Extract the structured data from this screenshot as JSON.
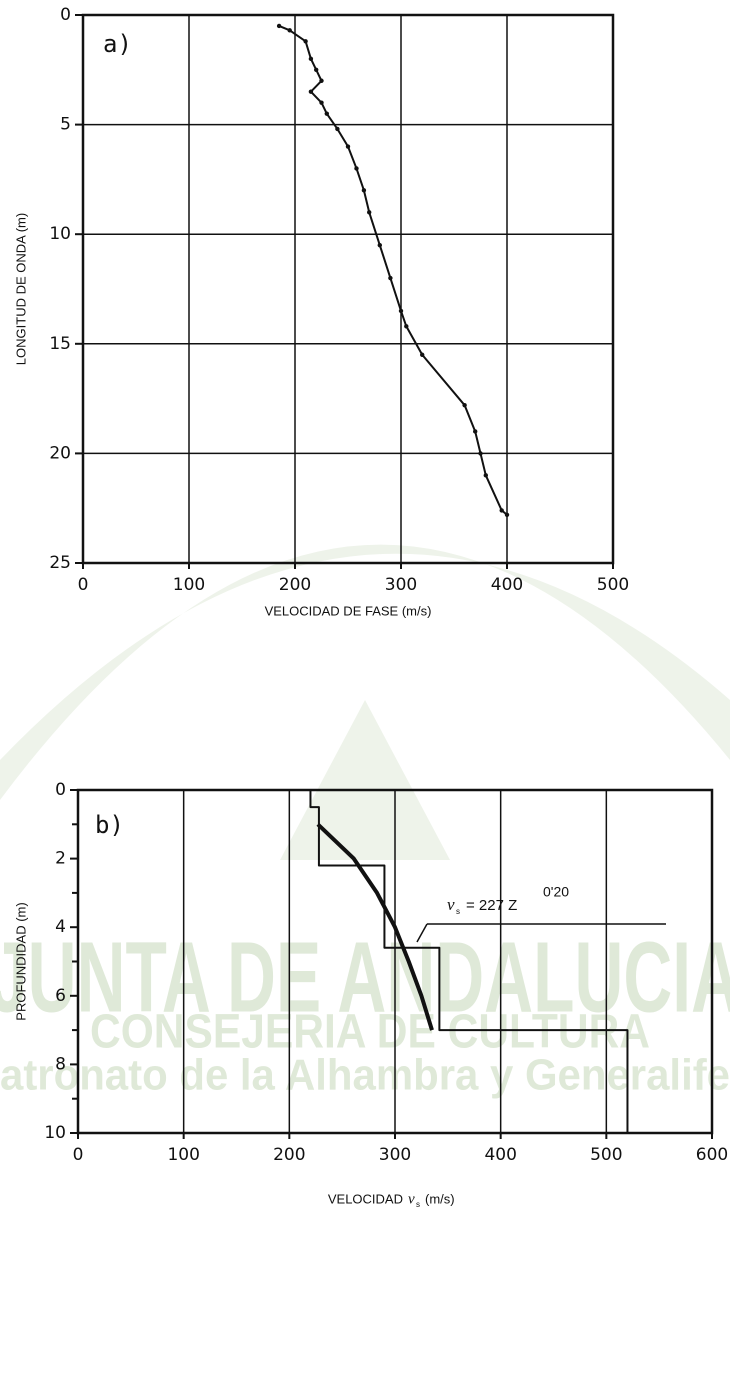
{
  "chart_data": [
    {
      "type": "line",
      "panel_label": "a)",
      "ylabel": "LONGITUD DE ONDA (m)",
      "xlabel": "VELOCIDAD DE FASE (m/s)",
      "xlim": [
        0,
        500
      ],
      "xticks": [
        0,
        100,
        200,
        300,
        400,
        500
      ],
      "ylim": [
        0,
        25
      ],
      "yticks": [
        0,
        5,
        10,
        15,
        20,
        25
      ],
      "y_inverted": true,
      "grid": "both",
      "markers": true,
      "series": [
        {
          "color": "#111111",
          "width": 2,
          "x": [
            185,
            195,
            210,
            215,
            220,
            225,
            215,
            225,
            230,
            240,
            250,
            258,
            265,
            270,
            280,
            290,
            300,
            305,
            320,
            360,
            370,
            375,
            380,
            395,
            400
          ],
          "values": [
            0.5,
            0.7,
            1.2,
            2,
            2.5,
            3,
            3.5,
            4,
            4.5,
            5.2,
            6,
            7,
            8,
            9,
            10.5,
            12,
            13.5,
            14.2,
            15.5,
            17.8,
            19,
            20,
            21,
            22.6,
            22.8
          ]
        }
      ]
    },
    {
      "type": "line",
      "panel_label": "b)",
      "ylabel": "PROFUNDIDAD (m)",
      "xlabel": {
        "text": "VELOCIDAD",
        "symbol": "v",
        "subscript": "s",
        "unit": "(m/s)"
      },
      "xlim": [
        0,
        600
      ],
      "xticks": [
        0,
        100,
        200,
        300,
        400,
        500,
        600
      ],
      "ylim": [
        0,
        10
      ],
      "yticks": [
        0,
        2,
        4,
        6,
        8,
        10
      ],
      "yminor_ticks": [
        1,
        3,
        5,
        7,
        9
      ],
      "y_inverted": true,
      "grid": "x",
      "markers": false,
      "annotation": {
        "symbol": "v",
        "subscript": "s",
        "text": "= 227 Z",
        "exponent": "0'20"
      },
      "series": [
        {
          "color": "#111111",
          "width": 2,
          "x": [
            220,
            220,
            228,
            228,
            290,
            290,
            342,
            342,
            520,
            520
          ],
          "values": [
            0,
            0.5,
            0.5,
            2.2,
            2.2,
            4.6,
            4.6,
            7,
            7,
            10
          ]
        },
        {
          "color": "#111111",
          "width": 4,
          "x": [
            227,
            261,
            283,
            300,
            313,
            325,
            335
          ],
          "values": [
            1,
            2,
            3,
            4,
            5,
            6,
            7
          ]
        }
      ]
    }
  ],
  "watermark": {
    "line1": "JUNTA DE ANDALUCIA",
    "line2": "CONSEJERIA DE CULTURA",
    "line3": "atronato de la Alhambra y Generalife"
  }
}
